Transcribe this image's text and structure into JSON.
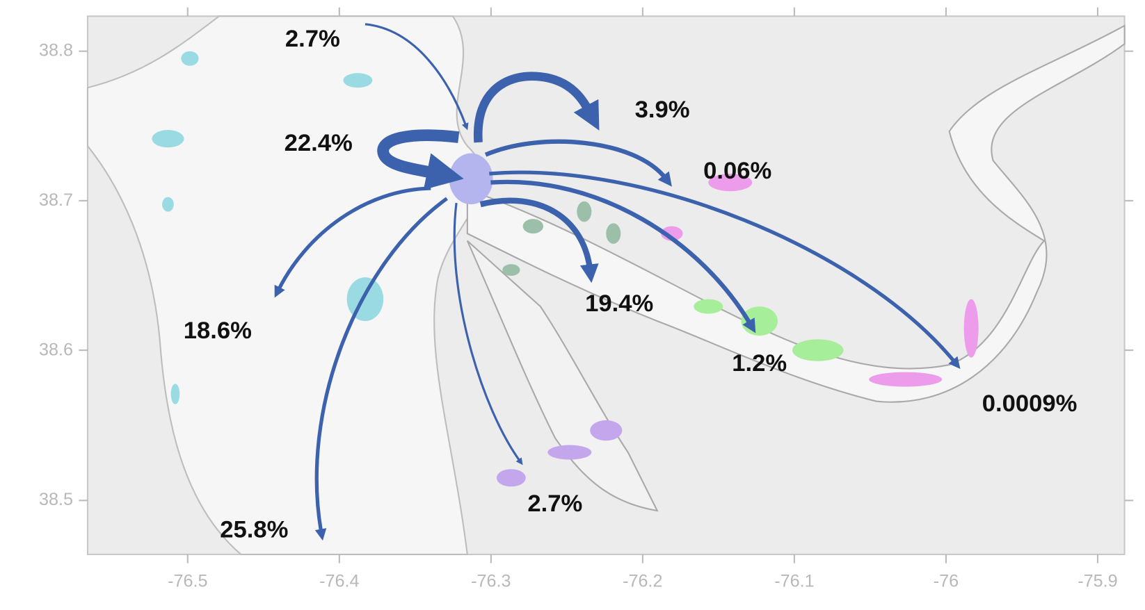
{
  "map": {
    "xticks": [
      -76.5,
      -76.4,
      -76.3,
      -76.2,
      -76.1,
      -76,
      -75.9
    ],
    "yticks": [
      38.8,
      38.7,
      38.6,
      38.5
    ],
    "flows": [
      {
        "label": "2.7%"
      },
      {
        "label": "3.9%"
      },
      {
        "label": "22.4%"
      },
      {
        "label": "0.06%"
      },
      {
        "label": "18.6%"
      },
      {
        "label": "19.4%"
      },
      {
        "label": "1.2%"
      },
      {
        "label": "0.0009%"
      },
      {
        "label": "25.8%"
      },
      {
        "label": "2.7%"
      }
    ]
  }
}
